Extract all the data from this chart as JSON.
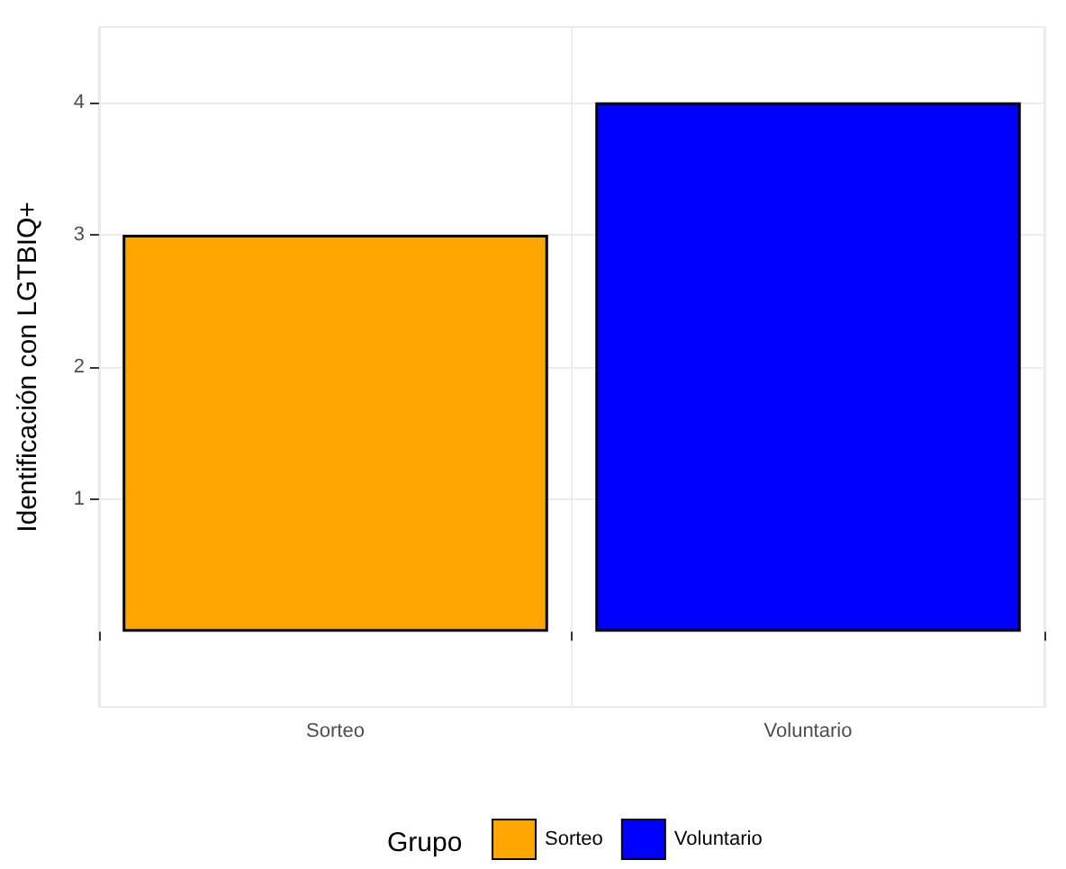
{
  "chart_data": {
    "type": "bar",
    "ylabel": "Identificación con LGTBIQ+",
    "categories": [
      "Sorteo",
      "Voluntario"
    ],
    "series": [
      {
        "name": "Sorteo",
        "color": "#ffa500",
        "values": [
          3,
          null
        ]
      },
      {
        "name": "Voluntario",
        "color": "#0000ff",
        "values": [
          null,
          4
        ]
      }
    ],
    "ylim": [
      -0.57,
      4.57
    ],
    "yticks": [
      1,
      2,
      3,
      4
    ],
    "grid": true,
    "legend": "bottom",
    "legend_title": "Grupo"
  }
}
